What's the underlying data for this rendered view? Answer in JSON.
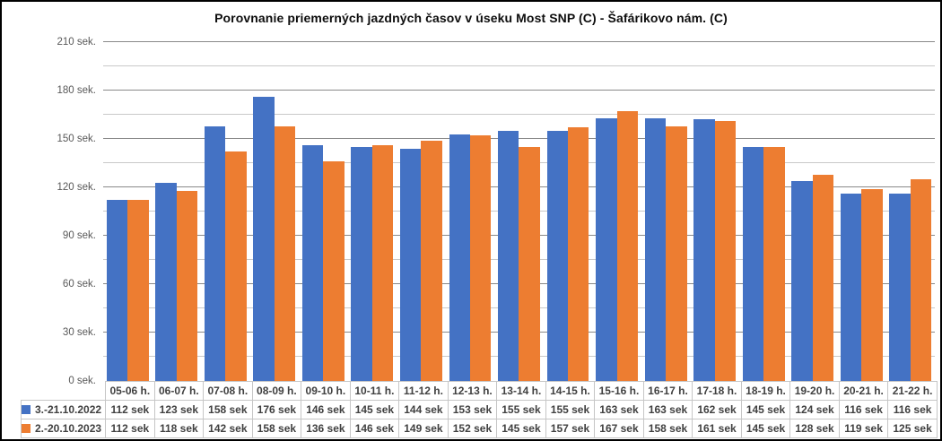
{
  "chart_data": {
    "type": "bar",
    "title": "Porovnanie priemerných jazdných časov v úseku Most SNP (C) - Šafárikovo nám. (C)",
    "categories": [
      "05-06 h.",
      "06-07 h.",
      "07-08 h.",
      "08-09 h.",
      "09-10 h.",
      "10-11 h.",
      "11-12 h.",
      "12-13 h.",
      "13-14 h.",
      "14-15 h.",
      "15-16 h.",
      "16-17 h.",
      "17-18 h.",
      "18-19 h.",
      "19-20 h.",
      "20-21 h.",
      "21-22 h."
    ],
    "series": [
      {
        "name": "3.-21.10.2022",
        "color": "#4472C4",
        "values": [
          112,
          123,
          158,
          176,
          146,
          145,
          144,
          153,
          155,
          155,
          163,
          163,
          162,
          145,
          124,
          116,
          116
        ]
      },
      {
        "name": "2.-20.10.2023",
        "color": "#ED7D31",
        "values": [
          112,
          118,
          142,
          158,
          136,
          146,
          149,
          152,
          145,
          157,
          167,
          158,
          161,
          145,
          128,
          119,
          125
        ]
      }
    ],
    "ylim": [
      0,
      210
    ],
    "y_ticks": [
      0,
      30,
      60,
      90,
      120,
      150,
      180,
      210
    ],
    "y_minor_step": 15,
    "y_tick_suffix": " sek.",
    "value_suffix": " sek",
    "grid": {
      "major_color": "#898989",
      "minor_color": "#c9c9c9"
    },
    "legend_position": "data-table-left",
    "xlabel": "",
    "ylabel": ""
  }
}
